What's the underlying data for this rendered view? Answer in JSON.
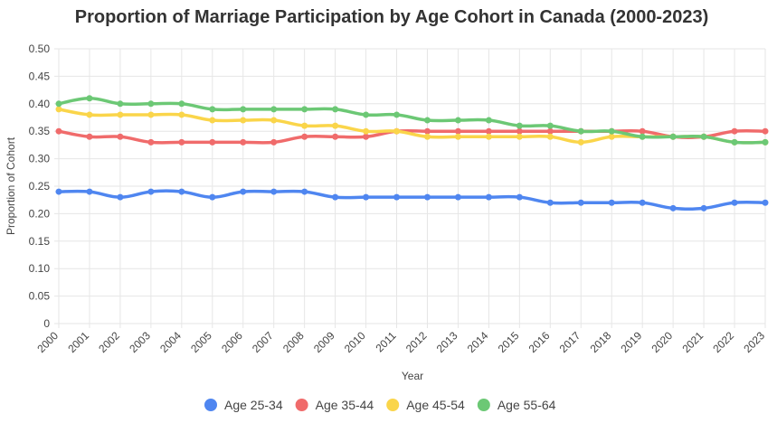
{
  "chart_data": {
    "type": "line",
    "title": "Proportion of Marriage Participation by Age Cohort in Canada (2000-2023)",
    "xlabel": "Year",
    "ylabel": "Proportion of Cohort",
    "ylim": [
      0,
      0.5
    ],
    "yticks": [
      "0",
      "0.05",
      "0.10",
      "0.15",
      "0.20",
      "0.25",
      "0.30",
      "0.35",
      "0.40",
      "0.45",
      "0.50"
    ],
    "legend_position": "bottom",
    "grid": true,
    "categories": [
      "2000",
      "2001",
      "2002",
      "2003",
      "2004",
      "2005",
      "2006",
      "2007",
      "2008",
      "2009",
      "2010",
      "2011",
      "2012",
      "2013",
      "2014",
      "2015",
      "2016",
      "2017",
      "2018",
      "2019",
      "2020",
      "2021",
      "2022",
      "2023"
    ],
    "series": [
      {
        "name": "Age 25-34",
        "color": "#4f86f0",
        "values": [
          0.24,
          0.24,
          0.23,
          0.24,
          0.24,
          0.23,
          0.24,
          0.24,
          0.24,
          0.23,
          0.23,
          0.23,
          0.23,
          0.23,
          0.23,
          0.23,
          0.22,
          0.22,
          0.22,
          0.22,
          0.21,
          0.21,
          0.22,
          0.22
        ]
      },
      {
        "name": "Age 35-44",
        "color": "#f06b6b",
        "values": [
          0.35,
          0.34,
          0.34,
          0.33,
          0.33,
          0.33,
          0.33,
          0.33,
          0.34,
          0.34,
          0.34,
          0.35,
          0.35,
          0.35,
          0.35,
          0.35,
          0.35,
          0.35,
          0.35,
          0.35,
          0.34,
          0.34,
          0.35,
          0.35
        ]
      },
      {
        "name": "Age 45-54",
        "color": "#fad54a",
        "values": [
          0.39,
          0.38,
          0.38,
          0.38,
          0.38,
          0.37,
          0.37,
          0.37,
          0.36,
          0.36,
          0.35,
          0.35,
          0.34,
          0.34,
          0.34,
          0.34,
          0.34,
          0.33,
          0.34,
          0.34,
          0.34,
          0.34,
          0.33,
          0.33
        ]
      },
      {
        "name": "Age 55-64",
        "color": "#6cc875",
        "values": [
          0.4,
          0.41,
          0.4,
          0.4,
          0.4,
          0.39,
          0.39,
          0.39,
          0.39,
          0.39,
          0.38,
          0.38,
          0.37,
          0.37,
          0.37,
          0.36,
          0.36,
          0.35,
          0.35,
          0.34,
          0.34,
          0.34,
          0.33,
          0.33
        ]
      }
    ]
  }
}
